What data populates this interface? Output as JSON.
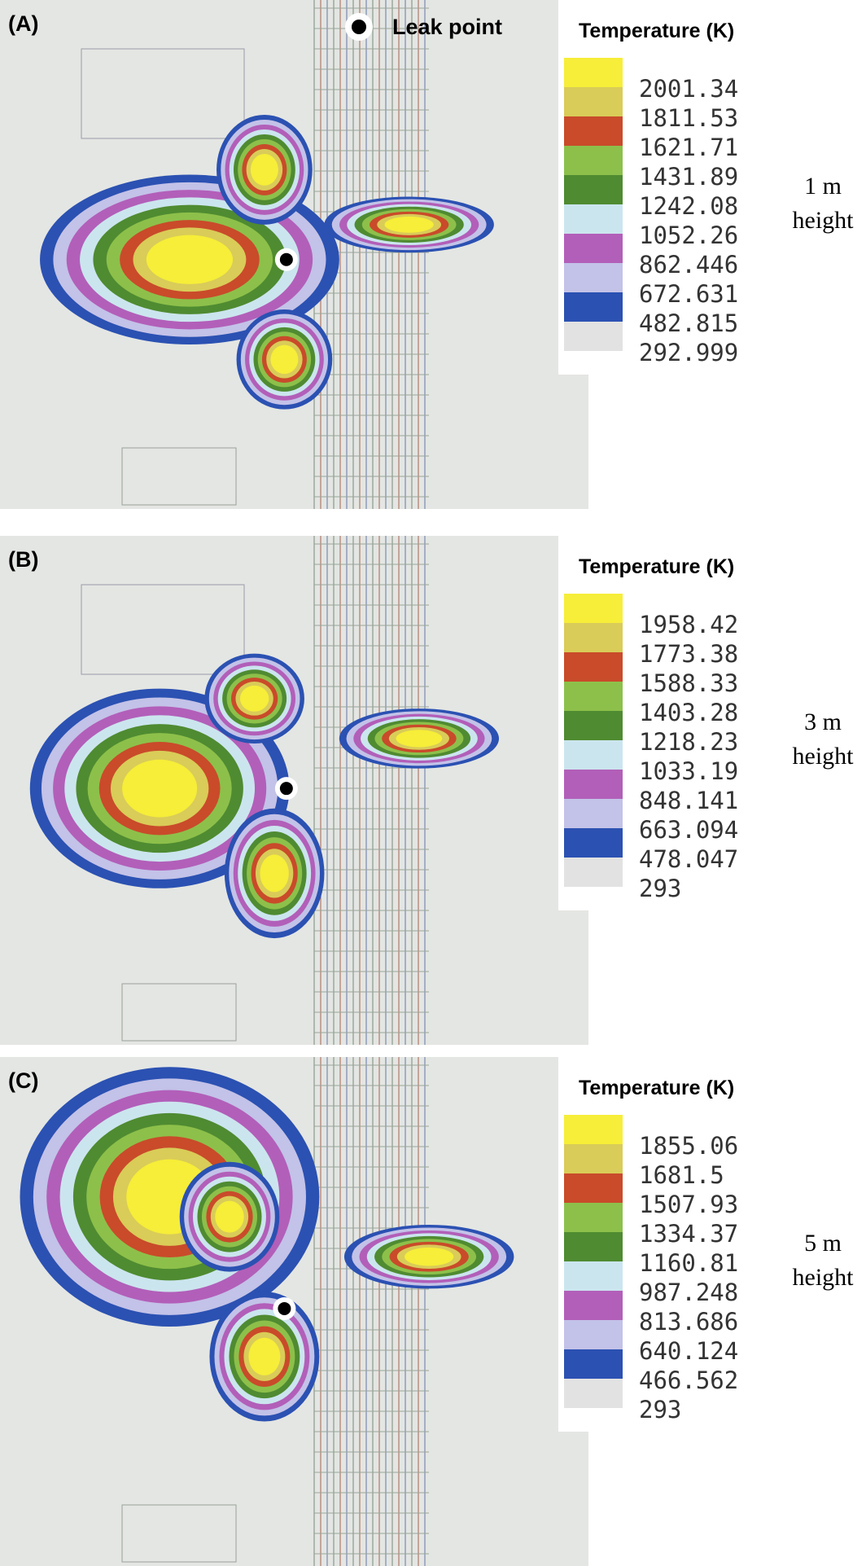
{
  "panels": [
    {
      "label": "(A)",
      "legend_title": "Temperature (K)",
      "legend_labels": [
        "2001.34",
        "1811.53",
        "1621.71",
        "1431.89",
        "1242.08",
        "1052.26",
        "862.446",
        "672.631",
        "482.815",
        "292.999"
      ],
      "height_label": [
        "1 m",
        "height"
      ],
      "leak_label": "Leak point"
    },
    {
      "label": "(B)",
      "legend_title": "Temperature (K)",
      "legend_labels": [
        "1958.42",
        "1773.38",
        "1588.33",
        "1403.28",
        "1218.23",
        "1033.19",
        "848.141",
        "663.094",
        "478.047",
        "293"
      ],
      "height_label": [
        "3 m",
        "height"
      ]
    },
    {
      "label": "(C)",
      "legend_title": "Temperature (K)",
      "legend_labels": [
        "1855.06",
        "1681.5",
        "1507.93",
        "1334.37",
        "1160.81",
        "987.248",
        "813.686",
        "640.124",
        "466.562",
        "293"
      ],
      "height_label": [
        "5 m",
        "height"
      ]
    }
  ]
}
